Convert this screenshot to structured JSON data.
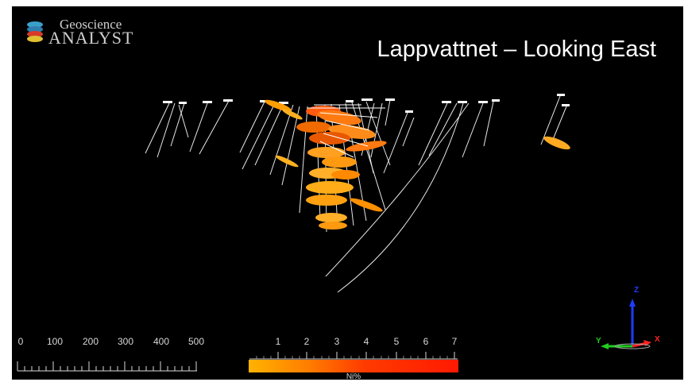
{
  "app": {
    "logo_line1": "Geoscience",
    "logo_line2": "ANALYST"
  },
  "view": {
    "title": "Lappvattnet – Looking East"
  },
  "scale_bar": {
    "labels": [
      "0",
      "100",
      "200",
      "300",
      "400",
      "500"
    ]
  },
  "color_legend": {
    "labels": [
      "1",
      "2",
      "3",
      "4",
      "5",
      "6",
      "7"
    ],
    "title": "Ni%",
    "colors": [
      "#ffb300",
      "#ff7a00",
      "#ff3b00",
      "#ff1a00"
    ]
  },
  "axes": {
    "z": "Z",
    "y": "Y",
    "x": "X",
    "colors": {
      "z": "#1e3cff",
      "y": "#22cc22",
      "x": "#ff2222"
    }
  },
  "icons": [
    "geoscience-analyst-logo-icon",
    "orientation-triad-icon"
  ]
}
